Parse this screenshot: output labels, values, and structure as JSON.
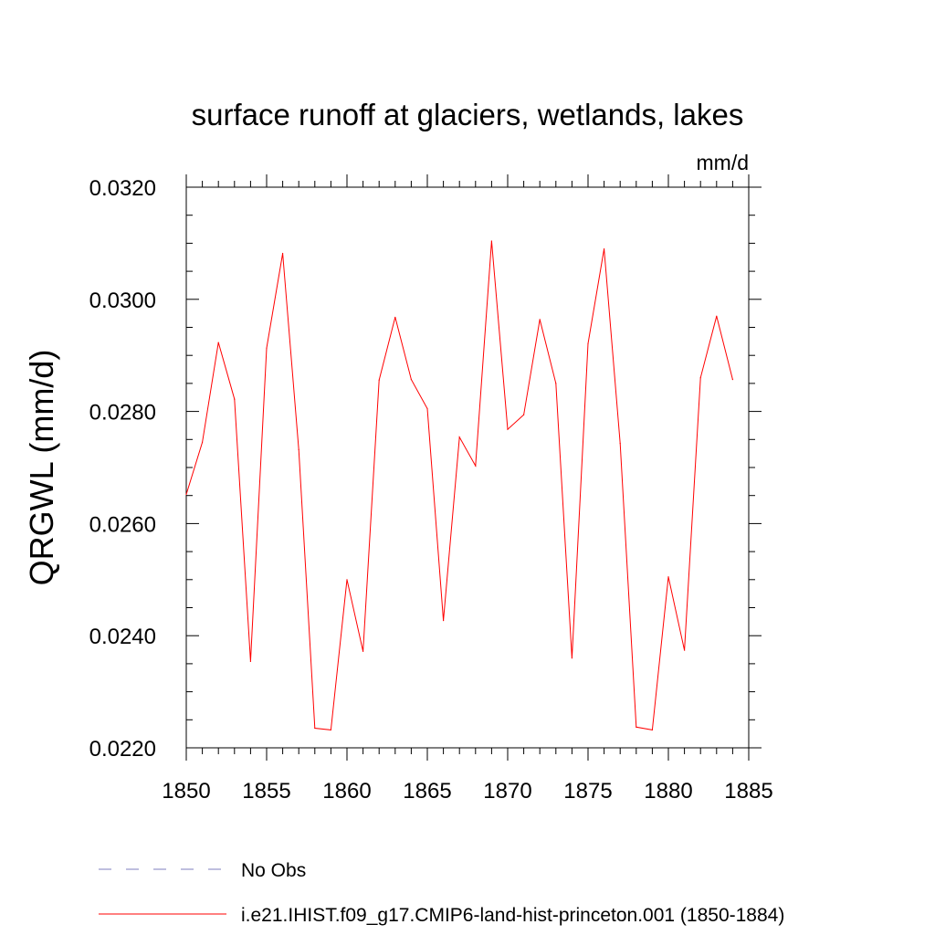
{
  "chart_data": {
    "type": "line",
    "title": "surface runoff at glaciers, wetlands, lakes",
    "units": "mm/d",
    "ylabel": "QRGWL  (mm/d)",
    "xlabel": "",
    "xlim": [
      1850,
      1885
    ],
    "ylim": [
      0.022,
      0.032
    ],
    "xticks": [
      1850,
      1855,
      1860,
      1865,
      1870,
      1875,
      1880,
      1885
    ],
    "xtick_labels": [
      "1850",
      "1855",
      "1860",
      "1865",
      "1870",
      "1875",
      "1880",
      "1885"
    ],
    "yticks": [
      0.022,
      0.024,
      0.026,
      0.028,
      0.03,
      0.032
    ],
    "ytick_labels": [
      "0.0220",
      "0.0240",
      "0.0260",
      "0.0280",
      "0.0300",
      "0.0320"
    ],
    "grid": false,
    "legend_position": "bottom",
    "legend": [
      {
        "label": "No Obs",
        "color": "#7f7fbf",
        "style": "dashed"
      },
      {
        "label": "i.e21.IHIST.f09_g17.CMIP6-land-hist-princeton.001 (1850-1884)",
        "color": "#ff0000",
        "style": "solid"
      }
    ],
    "series": [
      {
        "name": "i.e21.IHIST.f09_g17.CMIP6-land-hist-princeton.001 (1850-1884)",
        "color": "#ff0000",
        "x": [
          1850,
          1851,
          1852,
          1853,
          1854,
          1855,
          1856,
          1857,
          1858,
          1859,
          1860,
          1861,
          1862,
          1863,
          1864,
          1865,
          1866,
          1867,
          1868,
          1869,
          1870,
          1871,
          1872,
          1873,
          1874,
          1875,
          1876,
          1877,
          1878,
          1879,
          1880,
          1881,
          1882,
          1883,
          1884
        ],
        "y": [
          0.02652,
          0.02745,
          0.02923,
          0.02822,
          0.02354,
          0.02913,
          0.03082,
          0.02732,
          0.02235,
          0.02232,
          0.025,
          0.02372,
          0.02856,
          0.02968,
          0.02857,
          0.02805,
          0.02427,
          0.02754,
          0.02703,
          0.03104,
          0.02768,
          0.02794,
          0.02964,
          0.0285,
          0.0236,
          0.02921,
          0.0309,
          0.02743,
          0.02237,
          0.02232,
          0.02505,
          0.02374,
          0.0286,
          0.0297,
          0.02857
        ]
      }
    ]
  }
}
